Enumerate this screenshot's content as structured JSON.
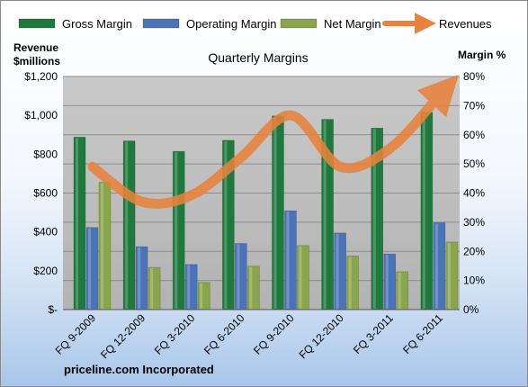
{
  "chart_data": {
    "type": "bar",
    "title": "Quarterly Margins",
    "categories": [
      "FQ 9-2009",
      "FQ 12-2009",
      "FQ 3-2010",
      "FQ 6-2010",
      "FQ 9-2010",
      "FQ 12-2010",
      "FQ 3-2011",
      "FQ 6-2011"
    ],
    "series": [
      {
        "name": "Gross Margin",
        "axis": "right",
        "unit": "%",
        "color": "#1e7a3c",
        "values": [
          59.2,
          57.9,
          54.3,
          58.1,
          66.5,
          65.3,
          62.3,
          67.7
        ]
      },
      {
        "name": "Operating Margin",
        "axis": "right",
        "unit": "%",
        "color": "#4a73b8",
        "values": [
          28.2,
          21.6,
          15.5,
          22.7,
          33.9,
          26.3,
          19.1,
          29.8
        ]
      },
      {
        "name": "Net Margin",
        "axis": "right",
        "unit": "%",
        "color": "#8aa64a",
        "values": [
          43.7,
          14.5,
          9.3,
          14.9,
          22.0,
          18.4,
          13.0,
          23.2
        ]
      },
      {
        "name": "Revenues",
        "type": "line",
        "axis": "left",
        "unit": "$ millions",
        "color": "#e8823c",
        "values": [
          735,
          555,
          590,
          785,
          1000,
          735,
          830,
          1105
        ]
      }
    ],
    "ylabel_left": [
      "Revenue",
      "$millions"
    ],
    "ylabel_right": "Margin %",
    "ylim_left": [
      0,
      1200
    ],
    "ylim_right": [
      0,
      80
    ],
    "yticks_left": [
      "$1,200",
      "$1,000",
      "$800",
      "$600",
      "$400",
      "$200",
      "$-"
    ],
    "yticks_right": [
      "80%",
      "70%",
      "60%",
      "50%",
      "40%",
      "30%",
      "20%",
      "10%",
      "0%"
    ],
    "grid": true,
    "legend": "top",
    "footer": "priceline.com Incorporated"
  }
}
